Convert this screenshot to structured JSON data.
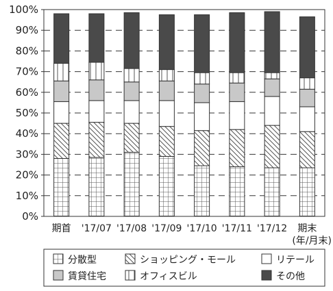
{
  "chart_data": {
    "type": "bar",
    "stacked": true,
    "categories": [
      "期首",
      "'17/07",
      "'17/08",
      "'17/09",
      "'17/10",
      "'17/11",
      "'17/12",
      "期末"
    ],
    "category_note": "(年/月末)",
    "y_ticks": [
      "0%",
      "10%",
      "20%",
      "30%",
      "40%",
      "50%",
      "60%",
      "70%",
      "80%",
      "90%",
      "100%"
    ],
    "ylim": [
      0,
      100
    ],
    "grid": "dashed horizontal",
    "legend_position": "bottom",
    "series": [
      {
        "name": "分散型",
        "pattern": "grid",
        "values": [
          28,
          28.5,
          31,
          29,
          24.5,
          24,
          23.5,
          23.5
        ]
      },
      {
        "name": "ショッピング・モール",
        "pattern": "diagonal",
        "values": [
          17,
          17,
          14,
          14.5,
          17,
          18,
          20.5,
          17.5
        ]
      },
      {
        "name": "リテール",
        "pattern": "white",
        "values": [
          10.5,
          10.5,
          11,
          12.5,
          13.5,
          13.5,
          14,
          12
        ]
      },
      {
        "name": "賃貸住宅",
        "pattern": "lightgray",
        "values": [
          10,
          10,
          9,
          9.5,
          9,
          9,
          8.5,
          8.5
        ]
      },
      {
        "name": "オフィスビル",
        "pattern": "vertical",
        "values": [
          8.5,
          8.5,
          6.5,
          5.5,
          5.5,
          5,
          3,
          5.5
        ]
      },
      {
        "name": "その他",
        "pattern": "darkgray",
        "values": [
          24,
          23.5,
          27,
          26.5,
          28,
          29,
          29.5,
          29.5
        ]
      }
    ]
  },
  "colors": {
    "dark": "#4a4a4a",
    "light_gray": "#c8c8c8",
    "pattern_stroke": "#555555"
  }
}
